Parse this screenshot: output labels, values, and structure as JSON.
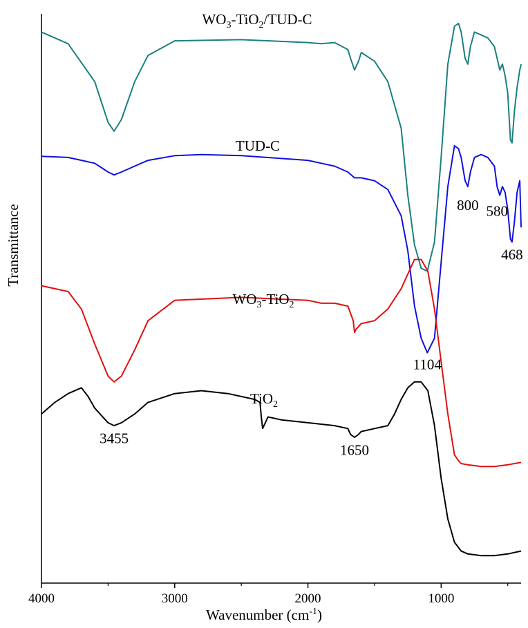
{
  "chart_data": {
    "type": "line",
    "title": "",
    "xlabel": "Wavenumber (cm-1)",
    "xlabel_base": "Wavenumber (cm",
    "xlabel_sup": "-1",
    "xlabel_tail": ")",
    "ylabel": "Transmittance",
    "xlim": [
      4000,
      400
    ],
    "x_reversed": true,
    "y_ticks_shown": false,
    "grid": false,
    "legend": "none",
    "xticks": [
      {
        "value": 4000,
        "label": "4000"
      },
      {
        "value": 3000,
        "label": "3000"
      },
      {
        "value": 2000,
        "label": "2000"
      },
      {
        "value": 1000,
        "label": "1000"
      }
    ],
    "ylim": [
      0,
      100
    ],
    "series": [
      {
        "name": "WO3-TiO2/TUD-C",
        "label_base": "WO",
        "label_sub1": "3",
        "label_mid": "-TiO",
        "label_sub2": "2",
        "label_tail": "/TUD-C",
        "color": "#1a8080",
        "x": [
          4000,
          3800,
          3600,
          3500,
          3455,
          3400,
          3300,
          3200,
          3000,
          2500,
          2000,
          1900,
          1800,
          1700,
          1680,
          1650,
          1620,
          1600,
          1500,
          1400,
          1300,
          1250,
          1200,
          1150,
          1104,
          1050,
          1000,
          950,
          900,
          870,
          850,
          820,
          800,
          780,
          750,
          700,
          650,
          600,
          580,
          560,
          540,
          520,
          500,
          480,
          468,
          450,
          430,
          410,
          400
        ],
        "y": [
          94.5,
          92.5,
          86,
          79,
          77.5,
          79.5,
          86,
          90.5,
          93,
          93.2,
          92.7,
          92.5,
          92.7,
          91.5,
          90,
          88,
          89.5,
          91,
          89.5,
          86,
          78,
          66.5,
          58,
          54,
          53.5,
          58.5,
          73,
          89,
          95.5,
          96,
          94.5,
          90,
          89,
          92,
          94.5,
          94,
          93.5,
          92,
          90,
          88,
          89,
          87,
          84,
          76,
          75.5,
          81,
          85,
          88,
          89
        ]
      },
      {
        "name": "TUD-C",
        "label": "TUD-C",
        "color": "#1010e0",
        "x": [
          4000,
          3800,
          3600,
          3500,
          3455,
          3400,
          3300,
          3200,
          3000,
          2800,
          2500,
          2000,
          1900,
          1800,
          1700,
          1650,
          1600,
          1500,
          1400,
          1300,
          1250,
          1200,
          1150,
          1104,
          1050,
          1000,
          950,
          900,
          870,
          850,
          820,
          800,
          780,
          750,
          700,
          650,
          600,
          580,
          560,
          540,
          520,
          500,
          480,
          468,
          450,
          430,
          410,
          400
        ],
        "y": [
          73.2,
          73,
          72,
          70.5,
          70,
          70.5,
          71.5,
          72.5,
          73.3,
          73.5,
          73.3,
          72.5,
          72,
          71.5,
          70.5,
          69.5,
          69.5,
          69,
          67.5,
          63,
          57,
          47.5,
          42,
          39.5,
          42,
          55,
          68,
          75,
          74.5,
          73,
          69,
          68,
          70.5,
          73,
          73.5,
          73,
          71.5,
          68,
          66.5,
          68,
          67,
          64,
          59,
          58.5,
          62,
          67,
          69,
          61
        ]
      },
      {
        "name": "WO3-TiO2",
        "label_base": "WO",
        "label_sub1": "3",
        "label_mid": "-TiO",
        "label_sub2": "2",
        "label_tail": "",
        "color": "#e01010",
        "x": [
          4000,
          3800,
          3700,
          3600,
          3500,
          3455,
          3400,
          3300,
          3200,
          3000,
          2500,
          2000,
          1900,
          1800,
          1700,
          1660,
          1650,
          1640,
          1600,
          1500,
          1400,
          1300,
          1250,
          1200,
          1150,
          1100,
          1050,
          1000,
          950,
          900,
          870,
          850,
          800,
          700,
          600,
          500,
          450,
          400
        ],
        "y": [
          51,
          50,
          47,
          41,
          35.5,
          34.5,
          35.5,
          40,
          45,
          48.5,
          49,
          48.5,
          48,
          48,
          47.5,
          45,
          43,
          43.5,
          44.5,
          45,
          47,
          50.5,
          53,
          55.5,
          55.5,
          53.5,
          47,
          38,
          29,
          22,
          21,
          20.5,
          20.3,
          20,
          20,
          20.3,
          20.5,
          20.7
        ]
      },
      {
        "name": "TiO2",
        "label_base": "TiO",
        "label_sub1": "2",
        "label_mid": "",
        "label_sub2": "",
        "label_tail": "",
        "color": "#000000",
        "x": [
          4000,
          3900,
          3800,
          3700,
          3650,
          3600,
          3500,
          3455,
          3400,
          3300,
          3200,
          3000,
          2800,
          2600,
          2400,
          2360,
          2350,
          2340,
          2320,
          2300,
          2200,
          2000,
          1800,
          1700,
          1680,
          1650,
          1620,
          1600,
          1500,
          1400,
          1350,
          1300,
          1250,
          1200,
          1150,
          1100,
          1050,
          1000,
          950,
          900,
          850,
          800,
          700,
          600,
          500,
          400
        ],
        "y": [
          29,
          31,
          32.5,
          33.5,
          32,
          30,
          27.5,
          27,
          27.5,
          29,
          31,
          32.5,
          33,
          32.5,
          31.5,
          31,
          28.5,
          26.5,
          27.5,
          28.5,
          28,
          27.5,
          27,
          26.5,
          25.5,
          25,
          25.5,
          26,
          26.5,
          27,
          29,
          31.5,
          33.5,
          34.5,
          34.5,
          33,
          27,
          18,
          11,
          7,
          5.5,
          5,
          4.7,
          4.7,
          5,
          5.5
        ]
      }
    ],
    "annotations": [
      {
        "text": "3455",
        "x": 3455,
        "y": 24
      },
      {
        "text": "1650",
        "x": 1650,
        "y": 22
      },
      {
        "text": "1104",
        "x": 1104,
        "y": 36.7
      },
      {
        "text": "800",
        "x": 800,
        "y": 64
      },
      {
        "text": "580",
        "x": 580,
        "y": 63
      },
      {
        "text": "468",
        "x": 468,
        "y": 55.5
      }
    ]
  }
}
